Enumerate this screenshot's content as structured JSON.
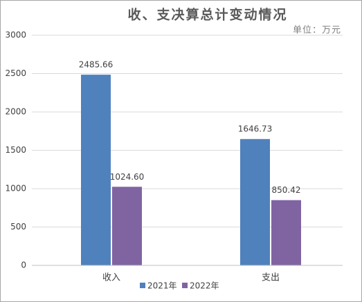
{
  "chart_data": {
    "type": "bar",
    "title": "收、支决算总计变动情况",
    "subtitle": "单位：万元",
    "categories": [
      "收入",
      "支出"
    ],
    "series": [
      {
        "name": "2021年",
        "color": "#4f81bd",
        "values": [
          2485.66,
          1646.73
        ],
        "value_labels": [
          "2485.66",
          "1646.73"
        ]
      },
      {
        "name": "2022年",
        "color": "#8064a2",
        "values": [
          1024.6,
          850.42
        ],
        "value_labels": [
          "1024.60",
          "850.42"
        ]
      }
    ],
    "ylim": [
      0,
      3000
    ],
    "yticks": [
      0,
      500,
      1000,
      1500,
      2000,
      2500,
      3000
    ],
    "grid": true,
    "legend": "bottom"
  }
}
